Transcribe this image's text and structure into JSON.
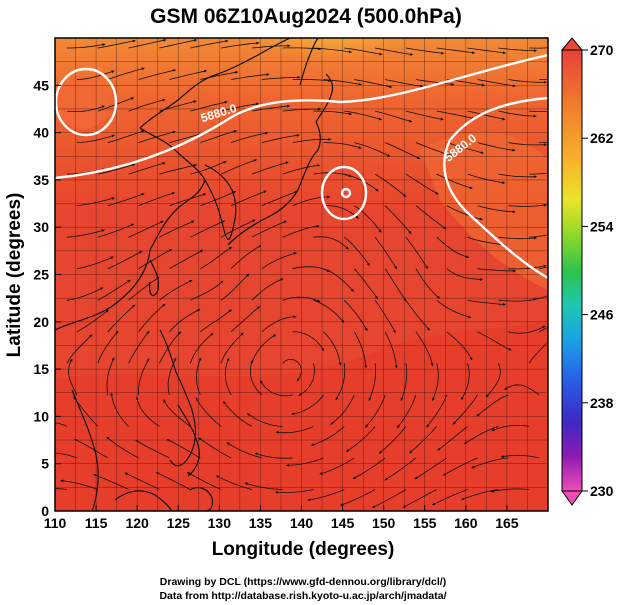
{
  "title": "GSM 06Z10Aug2024 (500.0hPa)",
  "map": {
    "lon_range": [
      110,
      170
    ],
    "lat_range": [
      0,
      50
    ],
    "lon_ticks": [
      "110",
      "115",
      "120",
      "125",
      "130",
      "135",
      "140",
      "145",
      "150",
      "155",
      "160",
      "165"
    ],
    "lat_ticks": [
      "0",
      "5",
      "10",
      "15",
      "20",
      "25",
      "30",
      "35",
      "40",
      "45"
    ],
    "xlabel": "Longitude (degrees)",
    "ylabel": "Latitude  (degrees)",
    "contour_labels": [
      "5880.0",
      "5880.0"
    ],
    "field_colors": {
      "hot": "#e63a2c",
      "warm": "#f0592c",
      "mid": "#ee6a30",
      "cool": "#f7903a",
      "edge": "#fbb23e",
      "yellow": "#f2e92c"
    }
  },
  "colorbar": {
    "ticks": [
      "270",
      "262",
      "254",
      "246",
      "238",
      "230"
    ],
    "colors": [
      "#e8443a",
      "#f0762e",
      "#f9a92b",
      "#f4d92a",
      "#a7db2a",
      "#33c43b",
      "#1bc4a8",
      "#1a9ee6",
      "#2c59e6",
      "#3a2bc6",
      "#6a1aa8",
      "#cc1b8e",
      "#f44bb4"
    ]
  },
  "credits": {
    "line1": "Drawing by DCL (https://www.gfd-dennou.org/library/dcl/)",
    "line2": "Data from http://database.rish.kyoto-u.ac.jp/arch/jmadata/"
  }
}
